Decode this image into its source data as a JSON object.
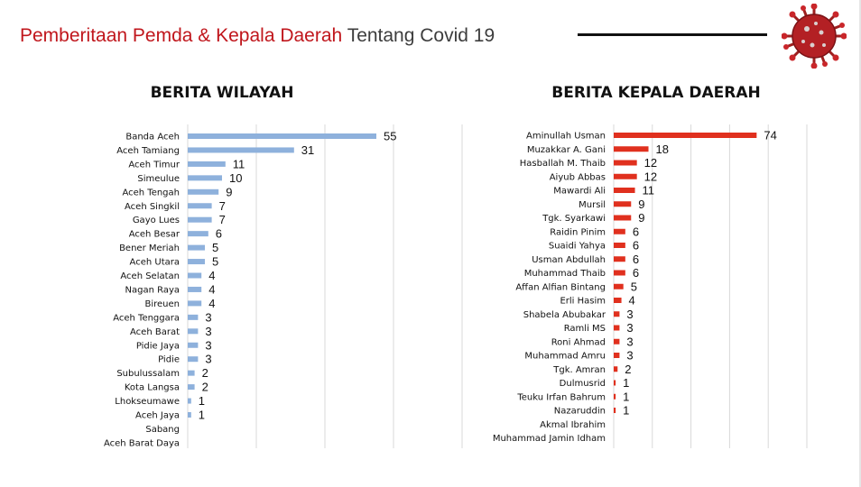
{
  "header": {
    "title_red": "Pemberitaan Pemda & Kepala Daerah",
    "title_grey": "Tentang Covid 19",
    "accent": "#c0161c",
    "icon": "coronavirus-icon"
  },
  "chart_data": [
    {
      "type": "bar",
      "orientation": "horizontal",
      "title": "BERITA WILAYAH",
      "color": "#8eb1dc",
      "xlim": [
        0,
        80
      ],
      "gridlines": [
        0,
        20,
        40,
        60,
        80
      ],
      "categories": [
        "Banda Aceh",
        "Aceh Tamiang",
        "Aceh Timur",
        "Simeulue",
        "Aceh Tengah",
        "Aceh Singkil",
        "Gayo Lues",
        "Aceh Besar",
        "Bener Meriah",
        "Aceh Utara",
        "Aceh Selatan",
        "Nagan Raya",
        "Bireuen",
        "Aceh Tenggara",
        "Aceh Barat",
        "Pidie Jaya",
        "Pidie",
        "Subulussalam",
        "Kota Langsa",
        "Lhokseumawe",
        "Aceh Jaya",
        "Sabang",
        "Aceh Barat Daya"
      ],
      "values": [
        55,
        31,
        11,
        10,
        9,
        7,
        7,
        6,
        5,
        5,
        4,
        4,
        4,
        3,
        3,
        3,
        3,
        2,
        2,
        1,
        1,
        null,
        null
      ]
    },
    {
      "type": "bar",
      "orientation": "horizontal",
      "title": "BERITA KEPALA DAERAH",
      "color": "#e0301e",
      "xlim": [
        0,
        100
      ],
      "gridlines": [
        0,
        20,
        40,
        60,
        80,
        100
      ],
      "categories": [
        "Aminullah Usman",
        "Muzakkar A. Gani",
        "Hasballah M. Thaib",
        "Aiyub Abbas",
        "Mawardi Ali",
        "Mursil",
        "Tgk. Syarkawi",
        "Raidin Pinim",
        "Suaidi Yahya",
        "Usman Abdullah",
        "Muhammad Thaib",
        "Affan Alfian Bintang",
        "Erli Hasim",
        "Shabela Abubakar",
        "Ramli MS",
        "Roni Ahmad",
        "Muhammad Amru",
        "Tgk. Amran",
        "Dulmusrid",
        "Teuku Irfan Bahrum",
        "Nazaruddin",
        "Akmal Ibrahim",
        "Muhammad Jamin Idham"
      ],
      "values": [
        74,
        18,
        12,
        12,
        11,
        9,
        9,
        6,
        6,
        6,
        6,
        5,
        4,
        3,
        3,
        3,
        3,
        2,
        1,
        1,
        1,
        null,
        null
      ]
    }
  ]
}
